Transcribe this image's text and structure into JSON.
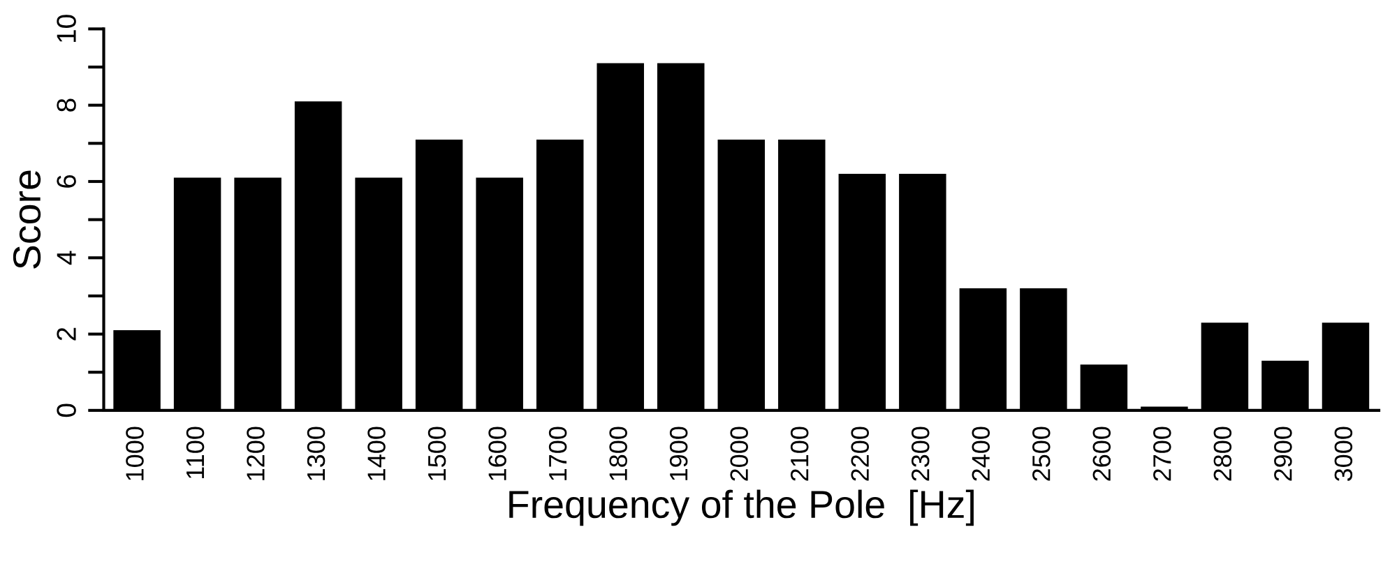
{
  "chart_data": {
    "type": "bar",
    "xlabel": "Frequency of the Pole  [Hz]",
    "ylabel": "Score",
    "categories": [
      "1000",
      "1100",
      "1200",
      "1300",
      "1400",
      "1500",
      "1600",
      "1700",
      "1800",
      "1900",
      "2000",
      "2100",
      "2200",
      "2300",
      "2400",
      "2500",
      "2600",
      "2700",
      "2800",
      "2900",
      "3000"
    ],
    "values": [
      2.1,
      6.1,
      6.1,
      8.1,
      6.1,
      7.1,
      6.1,
      7.1,
      9.1,
      9.1,
      7.1,
      7.1,
      6.2,
      6.2,
      3.2,
      3.2,
      1.2,
      0.1,
      2.3,
      1.3,
      2.3
    ],
    "color": "#000000",
    "ylim": [
      0,
      10
    ],
    "yticks": [
      0,
      {
        "value": 1,
        "label": null
      },
      2,
      {
        "value": 3,
        "label": null
      },
      4,
      {
        "value": 5,
        "label": null
      },
      6,
      {
        "value": 7,
        "label": null
      },
      8,
      {
        "value": 9,
        "label": null
      },
      10
    ],
    "grid": false
  }
}
